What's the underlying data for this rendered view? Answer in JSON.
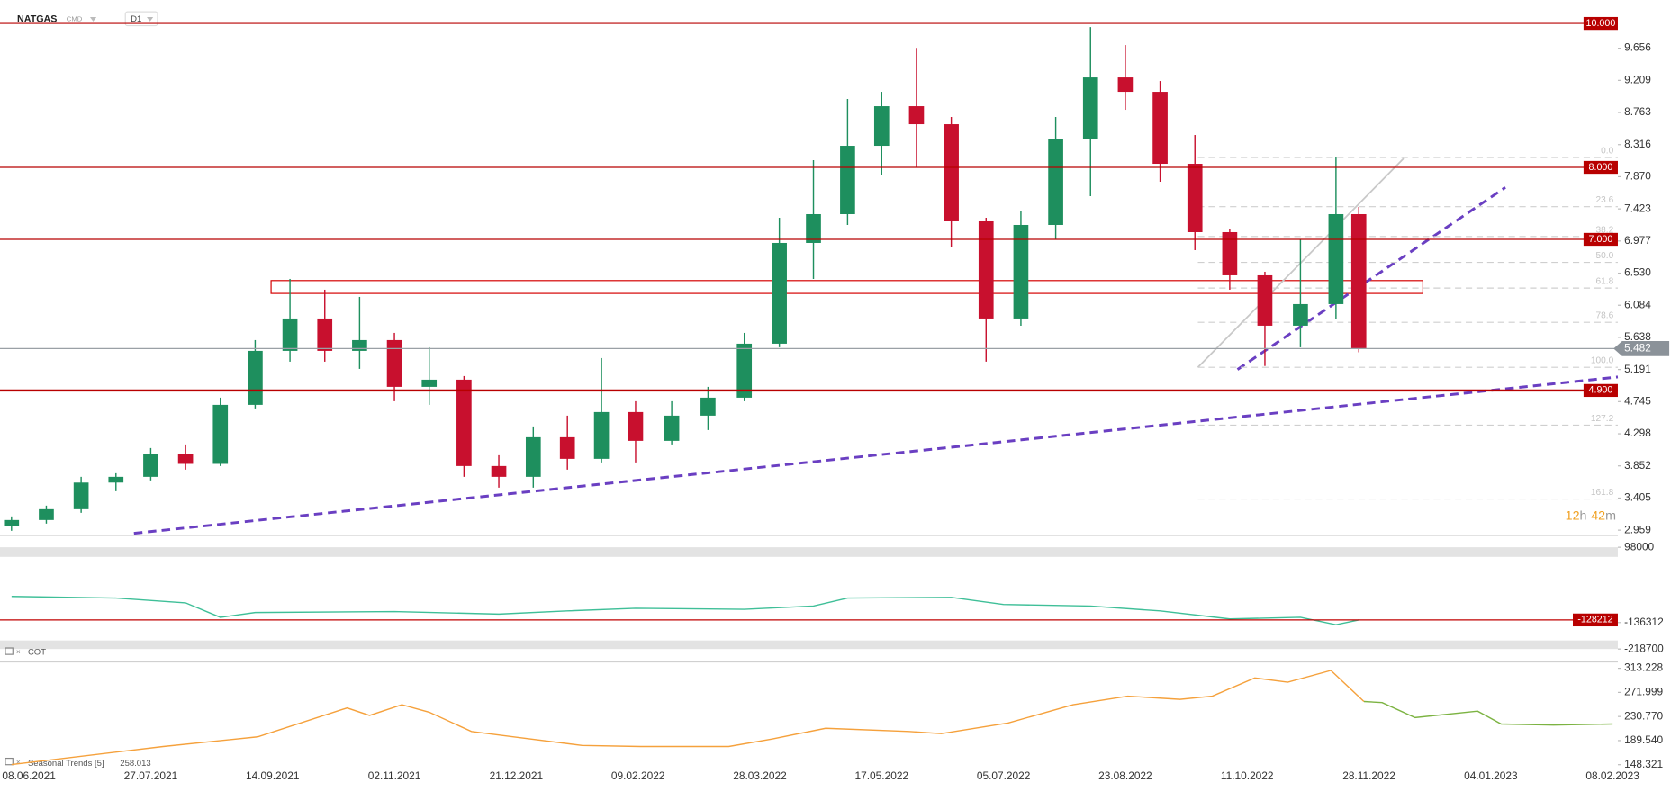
{
  "header": {
    "symbol": "NATGAS",
    "market": "CMD",
    "interval": "D1"
  },
  "chart_data": [
    {
      "type": "candlestick",
      "x": [
        "2021-06-01",
        "2021-06-15",
        "2021-06-29",
        "2021-07-13",
        "2021-07-27",
        "2021-08-10",
        "2021-08-24",
        "2021-09-07",
        "2021-09-21",
        "2021-10-05",
        "2021-10-19",
        "2021-11-02",
        "2021-11-16",
        "2021-11-30",
        "2021-12-14",
        "2021-12-28",
        "2022-01-11",
        "2022-01-25",
        "2022-02-08",
        "2022-02-22",
        "2022-03-08",
        "2022-03-22",
        "2022-04-05",
        "2022-04-19",
        "2022-05-03",
        "2022-05-17",
        "2022-05-31",
        "2022-06-14",
        "2022-06-28",
        "2022-07-12",
        "2022-07-26",
        "2022-08-09",
        "2022-08-23",
        "2022-09-06",
        "2022-09-20",
        "2022-10-04",
        "2022-10-18",
        "2022-11-01",
        "2022-11-15",
        "2022-11-24"
      ],
      "open": [
        3.02,
        3.1,
        3.25,
        3.62,
        3.7,
        4.02,
        3.88,
        4.7,
        5.45,
        5.9,
        5.45,
        5.6,
        4.95,
        5.05,
        3.85,
        3.7,
        4.25,
        3.95,
        4.6,
        4.2,
        4.55,
        4.8,
        5.55,
        6.95,
        7.35,
        8.3,
        8.85,
        8.6,
        7.25,
        5.9,
        7.2,
        8.4,
        9.25,
        9.05,
        8.05,
        7.1,
        6.5,
        5.8,
        6.1,
        7.35
      ],
      "high": [
        3.15,
        3.3,
        3.7,
        3.75,
        4.1,
        4.15,
        4.8,
        5.6,
        6.45,
        6.3,
        6.2,
        5.7,
        5.5,
        5.1,
        4.0,
        4.4,
        4.55,
        5.35,
        4.75,
        4.75,
        4.95,
        5.7,
        7.3,
        8.1,
        8.95,
        9.05,
        9.66,
        8.7,
        7.3,
        7.4,
        8.7,
        9.95,
        9.7,
        9.2,
        8.45,
        7.15,
        6.55,
        7.0,
        8.14,
        7.45
      ],
      "low": [
        2.95,
        3.05,
        3.2,
        3.5,
        3.65,
        3.8,
        3.85,
        4.65,
        5.3,
        5.3,
        5.2,
        4.75,
        4.7,
        3.7,
        3.55,
        3.55,
        3.8,
        3.9,
        3.9,
        4.15,
        4.35,
        4.75,
        5.5,
        6.45,
        7.2,
        7.9,
        8.0,
        6.9,
        5.3,
        5.8,
        7.0,
        7.6,
        8.8,
        7.8,
        6.85,
        6.3,
        5.24,
        5.5,
        5.9,
        5.43
      ],
      "close": [
        3.1,
        3.25,
        3.62,
        3.7,
        4.02,
        3.88,
        4.7,
        5.45,
        5.9,
        5.45,
        5.6,
        4.95,
        5.05,
        3.85,
        3.7,
        4.25,
        3.95,
        4.6,
        4.2,
        4.55,
        4.8,
        5.55,
        6.95,
        7.35,
        8.3,
        8.85,
        8.6,
        7.25,
        5.9,
        7.2,
        8.4,
        9.25,
        9.05,
        8.05,
        7.1,
        6.5,
        5.8,
        6.1,
        7.35,
        5.482
      ],
      "up_color": "#1e8f5e",
      "down_color": "#c8102e",
      "ylim": [
        2.885,
        10.326
      ],
      "yticks": [
        9.656,
        9.209,
        8.763,
        8.316,
        {
          "value": 7.87,
          "label": "7.870"
        },
        7.423,
        6.977,
        {
          "value": 6.53,
          "label": "6.530"
        },
        6.084,
        5.638,
        5.191,
        4.745,
        4.298,
        3.852,
        3.405,
        2.959
      ],
      "xticks": [
        "08.06.2021",
        "27.07.2021",
        "14.09.2021",
        "02.11.2021",
        "21.12.2021",
        "09.02.2022",
        "28.03.2022",
        "17.05.2022",
        "05.07.2022",
        "23.08.2022",
        "11.10.2022",
        "28.11.2022",
        "04.01.2023",
        "08.02.2023"
      ],
      "levels": [
        {
          "value": 10,
          "label": "10.000"
        },
        {
          "value": 8,
          "label": "8.000"
        },
        {
          "value": 7,
          "label": "7.000"
        },
        {
          "value": 4.9,
          "label": "4.900"
        }
      ],
      "level_color": "#b80000",
      "fibonacci": [
        {
          "label": "0.0",
          "price": 8.138
        },
        {
          "label": "23.6",
          "price": 7.454
        },
        {
          "label": "38.2",
          "price": 7.04
        },
        {
          "label": "50.0",
          "price": 6.68
        },
        {
          "label": "61.8",
          "price": 6.323
        },
        {
          "label": "78.6",
          "price": 5.847
        },
        {
          "label": "100.0",
          "price": 5.222
        },
        {
          "label": "127.2",
          "price": 4.418
        },
        {
          "label": "161.8",
          "price": 3.391
        }
      ],
      "countdown": [
        "12",
        "h",
        "42",
        "m"
      ]
    },
    {
      "type": "line",
      "title": "COT",
      "x": [
        "2021-06-01",
        "2021-07-13",
        "2021-08-10",
        "2021-08-24",
        "2021-09-07",
        "2021-11-02",
        "2021-12-14",
        "2022-01-11",
        "2022-02-08",
        "2022-03-22",
        "2022-04-19",
        "2022-05-03",
        "2022-06-14",
        "2022-07-05",
        "2022-08-09",
        "2022-09-06",
        "2022-10-04",
        "2022-11-01",
        "2022-11-15",
        "2022-11-24"
      ],
      "values": [
        -55000,
        -60000,
        -75000,
        -120000,
        -105000,
        -102000,
        -110000,
        -100000,
        -92000,
        -95000,
        -85000,
        -60000,
        -58000,
        -80000,
        -85000,
        -100000,
        -125000,
        -120000,
        -143000,
        -128212
      ],
      "color": "#3fbf98",
      "ylim": [
        -218700,
        98000
      ],
      "yticks": [
        98000,
        -136312,
        -218700
      ]
    },
    {
      "type": "line",
      "title": "Seasonal Trends [5]",
      "current_value": 258.013,
      "series": [
        {
          "color": "#f5a13c",
          "x": [
            "2021-06-01",
            "2021-08-01",
            "2021-09-08",
            "2021-10-14",
            "2021-10-23",
            "2021-11-05",
            "2021-11-16",
            "2021-12-03",
            "2021-12-20",
            "2022-01-17",
            "2022-02-10",
            "2022-03-16",
            "2022-04-02",
            "2022-04-24",
            "2022-05-28",
            "2022-06-10",
            "2022-07-07",
            "2022-08-02",
            "2022-08-24",
            "2022-09-14",
            "2022-09-27",
            "2022-10-14",
            "2022-10-27",
            "2022-11-13",
            "2022-11-26"
          ],
          "values": [
            148.5,
            179.5,
            196.0,
            245.4,
            232.6,
            250.9,
            238.1,
            205.1,
            196.0,
            181.3,
            179.5,
            179.5,
            192.3,
            210.6,
            205.1,
            201.5,
            219.8,
            250.9,
            265.6,
            260.1,
            265.6,
            296.7,
            289.4,
            309.6,
            256.4
          ]
        },
        {
          "color": "#7cb342",
          "x": [
            "2022-11-26",
            "2022-12-02",
            "2022-12-12",
            "2022-12-31",
            "2023-01-07",
            "2023-01-22",
            "2023-02-08"
          ],
          "values": [
            256.4,
            254.6,
            228.9,
            240.0,
            218.0,
            216.1,
            218.0
          ]
        }
      ],
      "ylim": [
        148.321,
        313.228
      ],
      "yticks": [
        313.228,
        271.999,
        {
          "value": 230.77,
          "label": "230.770"
        },
        {
          "value": 189.54,
          "label": "189.540"
        },
        148.321
      ]
    }
  ]
}
